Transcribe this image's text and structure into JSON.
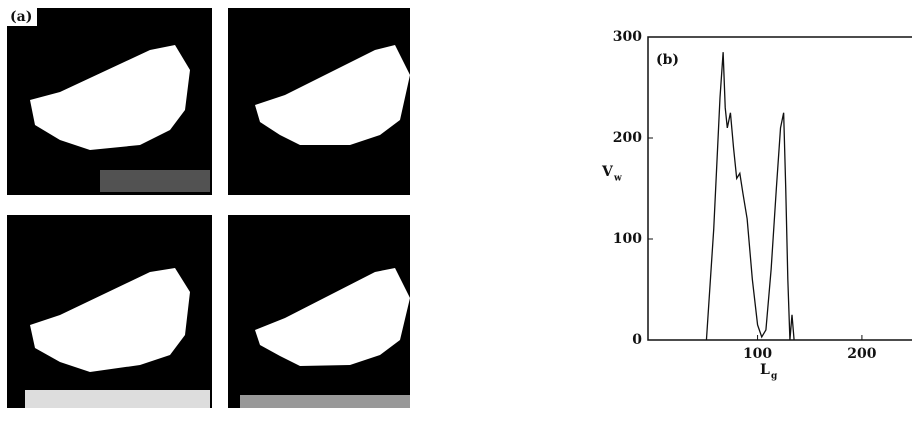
{
  "panel_a": {
    "label": "(a)"
  },
  "chart_data": {
    "type": "line",
    "panel_label": "(b)",
    "x_label": "L",
    "x_label_sub": "g",
    "y_label": "V",
    "y_label_sub": "w",
    "x": [
      51,
      58,
      64,
      67,
      69,
      71,
      74,
      77,
      80,
      83,
      86,
      90,
      95,
      100,
      104,
      108,
      113,
      118,
      122,
      125,
      127,
      129,
      131,
      133,
      135
    ],
    "values": [
      0,
      110,
      240,
      285,
      230,
      210,
      225,
      190,
      160,
      165,
      145,
      120,
      60,
      15,
      3,
      10,
      70,
      150,
      210,
      225,
      150,
      60,
      0,
      25,
      0
    ],
    "color": "#111111",
    "xlim": [
      -5,
      248
    ],
    "ylim": [
      0,
      300
    ],
    "xticks": [
      100,
      200
    ],
    "yticks": [
      0,
      100,
      200,
      300
    ]
  }
}
